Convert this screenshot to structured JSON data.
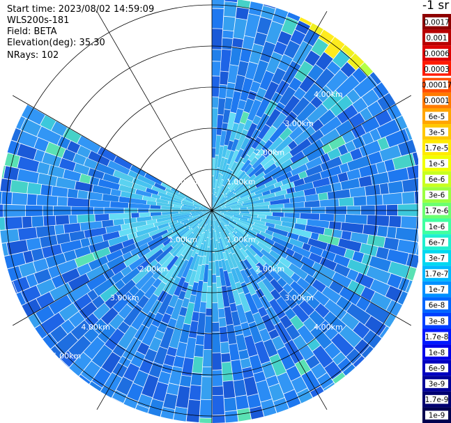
{
  "info": {
    "start_time": "Start time: 2023/08/02 14:59:09",
    "instrument": "WLS200s-181",
    "field": "Field: BETA",
    "elevation": "Elevation(deg): 35.30",
    "nrays": "NRays: 102"
  },
  "colorbar": {
    "unit": "-1 sr",
    "labels": [
      "0.0017",
      "0.001",
      "0.0006",
      "0.0003",
      "0.00017",
      "0.0001",
      "6e-5",
      "3e-5",
      "1.7e-5",
      "1e-5",
      "6e-6",
      "3e-6",
      "1.7e-6",
      "1e-6",
      "6e-7",
      "3e-7",
      "1.7e-7",
      "1e-7",
      "6e-8",
      "3e-8",
      "1.7e-8",
      "1e-8",
      "6e-9",
      "3e-9",
      "1.7e-9",
      "1e-9"
    ],
    "colors": [
      "#8e0000",
      "#b80000",
      "#dd0000",
      "#ff1a00",
      "#ff4d00",
      "#ff7a00",
      "#ffa500",
      "#ffc800",
      "#ffea00",
      "#f0ff00",
      "#c8ff1e",
      "#9cff40",
      "#6cff70",
      "#40ffa0",
      "#20f0d0",
      "#00d8f0",
      "#00b8ff",
      "#0090ff",
      "#0066ff",
      "#0040ff",
      "#0018ff",
      "#0000e8",
      "#0000c0",
      "#000098",
      "#000070",
      "#000050"
    ]
  },
  "chart_data": {
    "type": "heatmap",
    "projection": "polar PPI",
    "field": "BETA",
    "elevation_deg": 35.3,
    "n_rays": 102,
    "range_rings_km": [
      1.0,
      2.0,
      3.0,
      4.0,
      5.0
    ],
    "ring_labels": [
      "1.00km",
      "2.00km",
      "3.00km",
      "4.00km",
      "5.00km"
    ],
    "color_scale": "log",
    "value_range": [
      1e-09,
      0.0017
    ],
    "missing_sector_azimuth_deg": [
      300,
      360
    ],
    "dominant_value": 1e-08,
    "high_value_edge_azimuth_deg": [
      25,
      50
    ],
    "high_value_edge_value": 1e-05
  }
}
